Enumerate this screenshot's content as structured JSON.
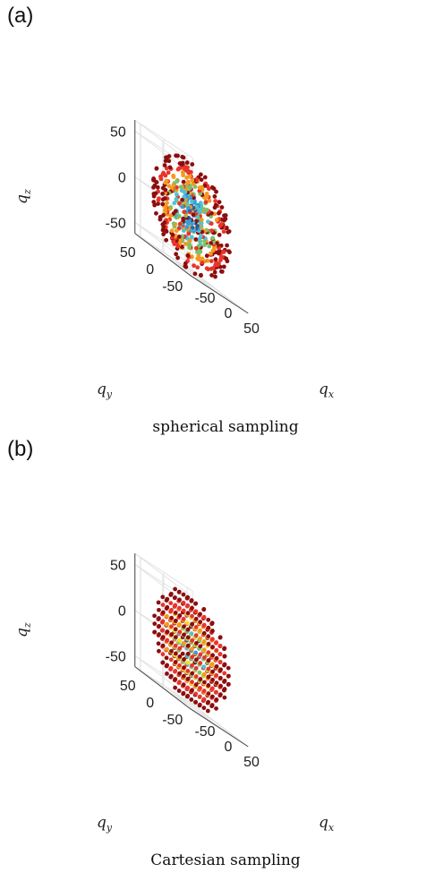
{
  "panel_labels": [
    "(a)",
    "(b)"
  ],
  "chart_data": [
    {
      "type": "scatter",
      "title": "",
      "caption": "spherical sampling",
      "xlabel_main": "q",
      "xlabel_sub": "x",
      "ylabel_main": "q",
      "ylabel_sub": "y",
      "zlabel_main": "q",
      "zlabel_sub": "z",
      "z_ticks": [
        "50",
        "0",
        "-50"
      ],
      "y_ticks": [
        "50",
        "0",
        "-50"
      ],
      "x_ticks": [
        "-50",
        "0",
        "50"
      ],
      "sampling": "spherical",
      "radius": 60,
      "colors": [
        "#1f5fa8",
        "#3a9ad9",
        "#4fc3d6",
        "#7cc26b",
        "#f39a1e",
        "#e8352b",
        "#8b0e0e"
      ],
      "grid": true
    },
    {
      "type": "scatter",
      "title": "",
      "caption": "Cartesian sampling",
      "xlabel_main": "q",
      "xlabel_sub": "x",
      "ylabel_main": "q",
      "ylabel_sub": "y",
      "zlabel_main": "q",
      "zlabel_sub": "z",
      "z_ticks": [
        "50",
        "0",
        "-50"
      ],
      "y_ticks": [
        "50",
        "0",
        "-50"
      ],
      "x_ticks": [
        "-50",
        "0",
        "50"
      ],
      "sampling": "cartesian",
      "radius": 60,
      "colors": [
        "#1f5fa8",
        "#3a9ad9",
        "#4fc3d6",
        "#7cc26b",
        "#f2e21a",
        "#f39a1e",
        "#e8352b",
        "#8b0e0e"
      ],
      "grid": true
    }
  ]
}
